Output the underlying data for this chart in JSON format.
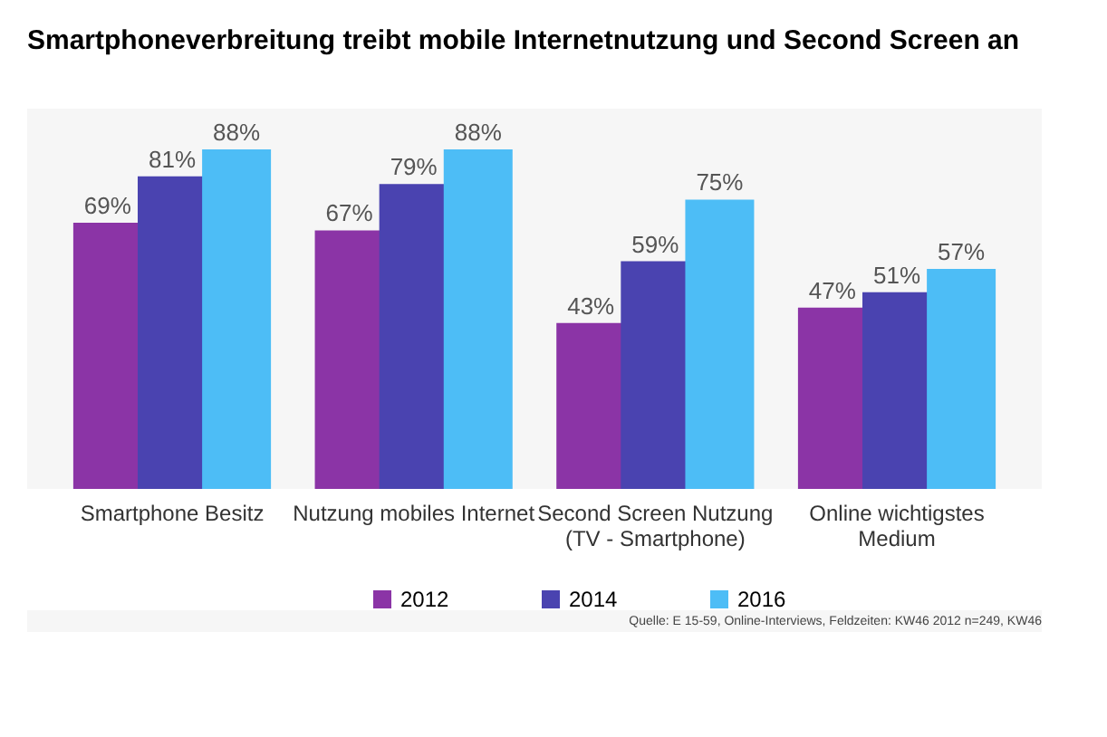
{
  "chart_data": {
    "type": "bar",
    "title": "Smartphoneverbreitung treibt mobile Internetnutzung und Second Screen an",
    "categories": [
      "Smartphone Besitz",
      "Nutzung mobiles Internet",
      "Second Screen Nutzung (TV - Smartphone)",
      "Online wichtigstes Medium"
    ],
    "series": [
      {
        "name": "2012",
        "color": "#8b34a6",
        "values": [
          69,
          67,
          43,
          47
        ],
        "value_labels": [
          "69%",
          "67%",
          "43%",
          "47%"
        ]
      },
      {
        "name": "2014",
        "color": "#4a43b0",
        "values": [
          81,
          79,
          59,
          51
        ],
        "value_labels": [
          "81%",
          "79%",
          "59%",
          "51%"
        ]
      },
      {
        "name": "2016",
        "color": "#4dbdf6",
        "values": [
          88,
          88,
          75,
          57
        ],
        "value_labels": [
          "88%",
          "88%",
          "75%",
          "57%"
        ]
      }
    ],
    "legend": "bottom",
    "annotations": [
      "Quelle: E 15-59, Online-Interviews, Feldzeiten: KW46 2012 n=249, KW46"
    ]
  }
}
